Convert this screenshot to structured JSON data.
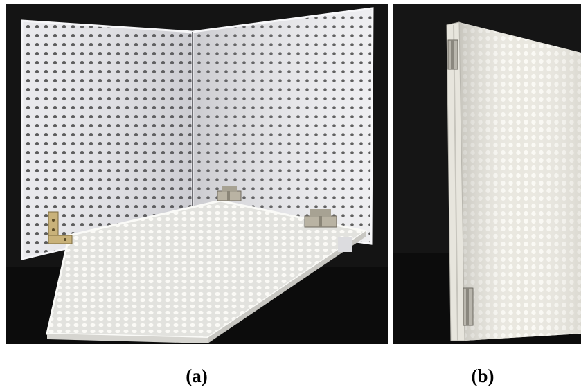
{
  "figure": {
    "panel_a": {
      "caption": "(a)"
    },
    "panel_b": {
      "caption": "(b)"
    }
  },
  "colors": {
    "background_dark": "#121212",
    "panel_white": "#e9e9ec",
    "panel_shadow": "#c9c9cf",
    "floor_white": "#f4f3ee",
    "hole": "#3a3a3a",
    "hinge": "#b9b3a3",
    "bracket_brass": "#c9b27a"
  },
  "icons": {
    "hinge": "hinge-icon",
    "bracket": "corner-bracket-icon"
  }
}
